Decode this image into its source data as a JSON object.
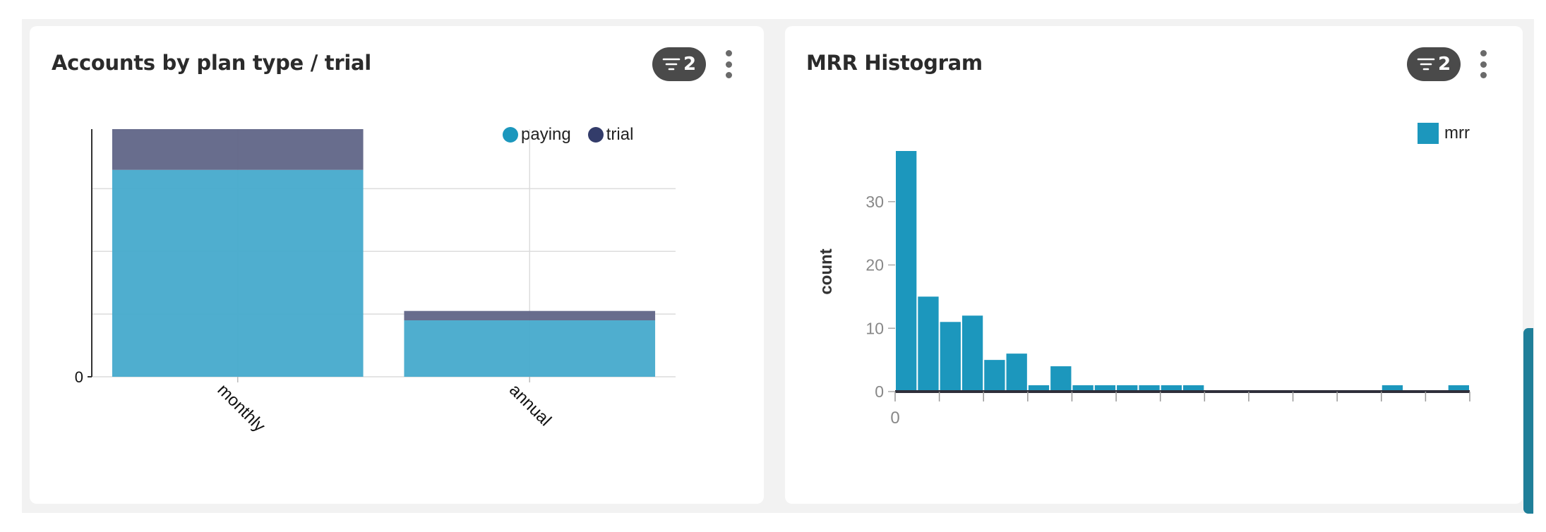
{
  "colors": {
    "paying": "#48abcd",
    "trial": "#626788",
    "mrr": "#1c97bd",
    "badge": "#4a4a4a",
    "scrollbar": "#1f7f99"
  },
  "left_panel": {
    "title": "Accounts by plan type / trial",
    "filter_count": "2",
    "menu_icon": "kebab-icon",
    "legend": [
      {
        "label": "paying",
        "color": "#1c97bd"
      },
      {
        "label": "trial",
        "color": "#333c6a"
      }
    ]
  },
  "right_panel": {
    "title": "MRR Histogram",
    "filter_count": "2",
    "menu_icon": "kebab-icon",
    "legend": [
      {
        "label": "mrr",
        "color": "#1c97bd"
      }
    ]
  },
  "chart_data": [
    {
      "type": "bar",
      "stacked": true,
      "categories": [
        "monthly",
        "annual"
      ],
      "series": [
        {
          "name": "paying",
          "values": [
            3.3,
            0.9
          ]
        },
        {
          "name": "trial",
          "values": [
            0.65,
            0.15
          ]
        }
      ],
      "ylim": [
        0,
        3.95
      ],
      "yticks": [
        0
      ],
      "y_gridlines": [
        1,
        2,
        3
      ],
      "grid": true,
      "legend_position": "top-right"
    },
    {
      "type": "bar",
      "subtype": "histogram",
      "series": [
        {
          "name": "mrr",
          "values": [
            38,
            15,
            11,
            12,
            5,
            6,
            1,
            4,
            1,
            1,
            1,
            1,
            1,
            1,
            0,
            0,
            0,
            0,
            0,
            0,
            0,
            0,
            1,
            0,
            0,
            1
          ]
        }
      ],
      "ylabel": "count",
      "xticks": [
        "0"
      ],
      "ylim": [
        0,
        38
      ],
      "yticks": [
        0,
        10,
        20,
        30
      ],
      "grid": false,
      "legend_position": "top-right"
    }
  ]
}
